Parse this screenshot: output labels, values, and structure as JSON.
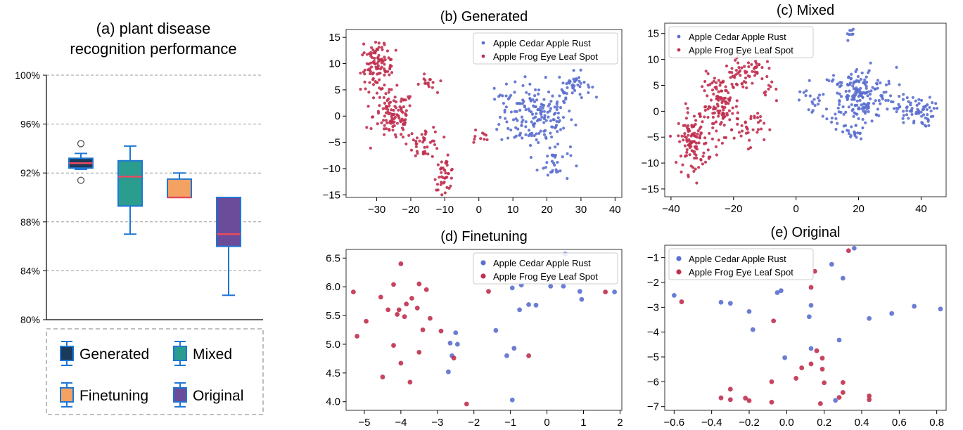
{
  "chart_data": [
    {
      "id": "a",
      "type": "box",
      "title_lines": [
        "(a)  plant disease",
        "recognition performance"
      ],
      "ylim": [
        80,
        100
      ],
      "yticks": [
        "80%",
        "84%",
        "88%",
        "92%",
        "96%",
        "100%"
      ],
      "ytick_values": [
        80,
        84,
        88,
        92,
        96,
        100
      ],
      "grid": true,
      "legend_position": "bottom",
      "series": [
        {
          "name": "Generated",
          "color": "#1a3a5c",
          "whisker_low": 92.3,
          "q1": 92.4,
          "median": 92.8,
          "q3": 93.2,
          "whisker_high": 93.6,
          "outliers": [
            94.4,
            91.4
          ]
        },
        {
          "name": "Mixed",
          "color": "#2a9d8f",
          "whisker_low": 87.0,
          "q1": 89.3,
          "median": 91.7,
          "q3": 93.0,
          "whisker_high": 94.2,
          "outliers": []
        },
        {
          "name": "Finetuning",
          "color": "#f4a261",
          "whisker_low": 90.0,
          "q1": 90.0,
          "median": 90.0,
          "q3": 91.5,
          "whisker_high": 92.0,
          "outliers": []
        },
        {
          "name": "Original",
          "color": "#6b4c9a",
          "whisker_low": 82.0,
          "q1": 86.0,
          "median": 87.0,
          "q3": 90.0,
          "whisker_high": 90.0,
          "outliers": []
        }
      ],
      "box_edge_color": "#1f77d4",
      "median_color": "#e84a5f"
    },
    {
      "id": "b",
      "type": "scatter",
      "title": "(b) Generated",
      "xlim": [
        -39,
        42
      ],
      "ylim": [
        -15.5,
        16.5
      ],
      "xticks": [
        -30,
        -20,
        -10,
        0,
        10,
        20,
        30,
        40
      ],
      "yticks": [
        -15,
        -10,
        -5,
        0,
        5,
        10,
        15
      ],
      "legend_position": "top-right",
      "marker": "small",
      "series": [
        {
          "name": "Apple Cedar Apple Rust",
          "color": "#5b6fcf",
          "clusters": [
            [
              17,
              0,
              9,
              5,
              170
            ],
            [
              28,
              6,
              4,
              2,
              40
            ],
            [
              22,
              -9,
              4,
              3,
              30
            ],
            [
              8,
              5,
              2,
              2,
              8
            ]
          ]
        },
        {
          "name": "Apple Frog Eye Leaf Spot",
          "color": "#c0304f",
          "clusters": [
            [
              -30,
              9,
              4,
              3.5,
              90
            ],
            [
              -25,
              0,
              5,
              4,
              110
            ],
            [
              -16,
              -5,
              4,
              2.5,
              40
            ],
            [
              -10,
              -11,
              2.5,
              2.5,
              40
            ],
            [
              -15,
              6,
              2,
              1.5,
              15
            ],
            [
              0,
              -4,
              3,
              1.5,
              10
            ],
            [
              -30,
              12,
              4,
              2,
              15
            ]
          ]
        }
      ]
    },
    {
      "id": "c",
      "type": "scatter",
      "title": "(c) Mixed",
      "xlim": [
        -42,
        48
      ],
      "ylim": [
        -16.5,
        17
      ],
      "xticks": [
        -40,
        -20,
        0,
        20,
        40
      ],
      "yticks": [
        -15,
        -10,
        -5,
        0,
        5,
        10,
        15
      ],
      "legend_position": "top-left",
      "marker": "small",
      "series": [
        {
          "name": "Apple Cedar Apple Rust",
          "color": "#5b6fcf",
          "clusters": [
            [
              20,
              3,
              10,
              4.5,
              190
            ],
            [
              38,
              0,
              5,
              2.5,
              70
            ],
            [
              17,
              15,
              1.5,
              1,
              8
            ],
            [
              18,
              -4,
              4,
              2,
              25
            ],
            [
              5,
              2,
              3,
              2,
              12
            ]
          ]
        },
        {
          "name": "Apple Frog Eye Leaf Spot",
          "color": "#c0304f",
          "clusters": [
            [
              -33,
              -6,
              4,
              5,
              110
            ],
            [
              -24,
              1,
              5,
              5,
              120
            ],
            [
              -18,
              7,
              4,
              2.5,
              40
            ],
            [
              -12,
              8,
              3,
              2,
              20
            ],
            [
              -15,
              -3,
              4,
              3,
              30
            ],
            [
              -8,
              4,
              2,
              2,
              10
            ]
          ]
        }
      ]
    },
    {
      "id": "d",
      "type": "scatter",
      "title": "(d) Finetuning",
      "xlim": [
        -5.5,
        2.05
      ],
      "ylim": [
        3.85,
        6.65
      ],
      "xticks": [
        -5,
        -4,
        -3,
        -2,
        -1,
        0,
        1,
        2
      ],
      "yticks": [
        4.0,
        4.5,
        5.0,
        5.5,
        6.0,
        6.5
      ],
      "ytick_labels": [
        "4.0",
        "4.5",
        "5.0",
        "5.5",
        "6.0",
        "6.5"
      ],
      "legend_position": "top-right",
      "marker": "large",
      "series": [
        {
          "name": "Apple Cedar Apple Rust",
          "color": "#5b6fcf",
          "points": [
            [
              0.5,
              6.57
            ],
            [
              -0.7,
              6.03
            ],
            [
              0.1,
              6.01
            ],
            [
              0.45,
              6.01
            ],
            [
              -0.95,
              5.98
            ],
            [
              0.9,
              5.92
            ],
            [
              1.85,
              5.91
            ],
            [
              -0.5,
              5.69
            ],
            [
              -0.3,
              5.68
            ],
            [
              0.95,
              5.78
            ],
            [
              -0.75,
              5.6
            ],
            [
              -2.5,
              5.2
            ],
            [
              -1.4,
              5.24
            ],
            [
              -2.65,
              5.02
            ],
            [
              -2.45,
              5.0
            ],
            [
              -0.9,
              4.93
            ],
            [
              -1.1,
              4.8
            ],
            [
              -2.6,
              4.8
            ],
            [
              -2.7,
              4.52
            ],
            [
              -0.95,
              4.03
            ]
          ]
        },
        {
          "name": "Apple Frog Eye Leaf Spot",
          "color": "#c0304f",
          "points": [
            [
              -4,
              6.4
            ],
            [
              -5.3,
              5.91
            ],
            [
              -4.2,
              6.04
            ],
            [
              -3.5,
              6.05
            ],
            [
              -4.55,
              5.82
            ],
            [
              -3.3,
              5.95
            ],
            [
              -3.7,
              5.8
            ],
            [
              -1.6,
              5.92
            ],
            [
              -3.85,
              5.7
            ],
            [
              -4.05,
              5.6
            ],
            [
              -3.55,
              5.63
            ],
            [
              -4.35,
              5.6
            ],
            [
              -4.1,
              5.52
            ],
            [
              -3.9,
              5.48
            ],
            [
              -4.95,
              5.4
            ],
            [
              -3.2,
              5.45
            ],
            [
              -2.9,
              5.23
            ],
            [
              -3.4,
              5.25
            ],
            [
              -5.2,
              5.14
            ],
            [
              -2.55,
              4.76
            ],
            [
              -4.2,
              4.98
            ],
            [
              -3.5,
              4.86
            ],
            [
              -4,
              4.67
            ],
            [
              -0.5,
              4.8
            ],
            [
              -4.5,
              4.43
            ],
            [
              -3.75,
              4.34
            ],
            [
              -2.2,
              3.96
            ],
            [
              1.6,
              5.91
            ]
          ]
        }
      ]
    },
    {
      "id": "e",
      "type": "scatter",
      "title": "(e) Original",
      "xlim": [
        -0.65,
        0.85
      ],
      "ylim": [
        -7.15,
        -0.5
      ],
      "xticks": [
        -0.6,
        -0.4,
        -0.2,
        0.0,
        0.2,
        0.4,
        0.6,
        0.8
      ],
      "xtick_labels": [
        "−0.6",
        "−0.4",
        "−0.2",
        "0.0",
        "0.2",
        "0.4",
        "0.6",
        "0.8"
      ],
      "yticks": [
        -7,
        -6,
        -5,
        -4,
        -3,
        -2,
        -1
      ],
      "legend_position": "top-left",
      "marker": "large",
      "series": [
        {
          "name": "Apple Cedar Apple Rust",
          "color": "#5b6fcf",
          "points": [
            [
              0.36,
              -0.62
            ],
            [
              0.24,
              -1.27
            ],
            [
              0.3,
              -1.83
            ],
            [
              -0.6,
              -2.52
            ],
            [
              -0.03,
              -2.33
            ],
            [
              -0.05,
              -2.41
            ],
            [
              -0.35,
              -2.8
            ],
            [
              -0.3,
              -2.84
            ],
            [
              -0.2,
              -3.17
            ],
            [
              -0.18,
              -3.9
            ],
            [
              0.13,
              -2.92
            ],
            [
              0.12,
              -3.38
            ],
            [
              0.44,
              -3.45
            ],
            [
              0.56,
              -3.25
            ],
            [
              0.68,
              -2.96
            ],
            [
              0.82,
              -3.07
            ],
            [
              0.28,
              -4.32
            ],
            [
              0.13,
              -4.66
            ],
            [
              -0.01,
              -5.03
            ],
            [
              0.26,
              -6.75
            ]
          ]
        },
        {
          "name": "Apple Frog Eye Leaf Spot",
          "color": "#c0304f",
          "points": [
            [
              0.33,
              -0.72
            ],
            [
              0.15,
              -1.55
            ],
            [
              0.13,
              -2.2
            ],
            [
              -0.56,
              -2.78
            ],
            [
              -0.07,
              -3.55
            ],
            [
              0.16,
              -4.75
            ],
            [
              0.19,
              -5.05
            ],
            [
              0.13,
              -5.28
            ],
            [
              0.08,
              -5.44
            ],
            [
              0.19,
              -5.49
            ],
            [
              0.05,
              -5.86
            ],
            [
              -0.08,
              -6.0
            ],
            [
              0.2,
              -6.04
            ],
            [
              0.3,
              -6.03
            ],
            [
              -0.3,
              -6.3
            ],
            [
              0.3,
              -6.43
            ],
            [
              0.44,
              -6.57
            ],
            [
              -0.35,
              -6.65
            ],
            [
              -0.3,
              -6.72
            ],
            [
              -0.22,
              -6.66
            ],
            [
              -0.2,
              -6.76
            ],
            [
              0.44,
              -6.72
            ],
            [
              -0.08,
              -6.82
            ],
            [
              0.18,
              -6.88
            ],
            [
              0.28,
              -6.63
            ]
          ]
        }
      ]
    }
  ]
}
